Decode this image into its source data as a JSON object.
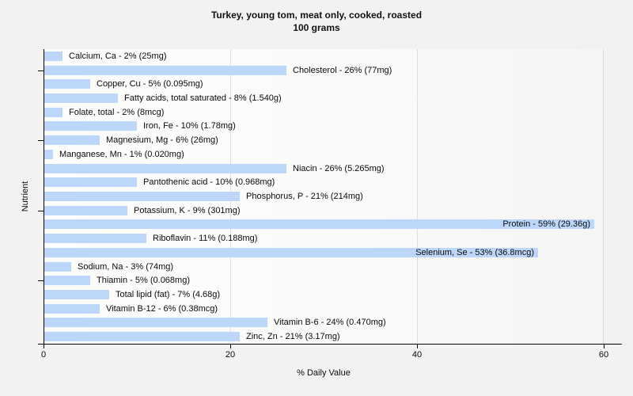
{
  "title": "Turkey, young tom, meat only, cooked, roasted",
  "subtitle": "100 grams",
  "chart_data": {
    "type": "bar",
    "orientation": "horizontal",
    "title": "Turkey, young tom, meat only, cooked, roasted",
    "subtitle": "100 grams",
    "xlabel": "% Daily Value",
    "ylabel": "Nutrient",
    "xlim": [
      0,
      60
    ],
    "xticks": [
      0,
      20,
      40,
      60
    ],
    "grid": "vertical-light",
    "legend": "none",
    "bar_color": "#BDD7FA",
    "y_tick_row_indexes": [
      1,
      6,
      11,
      16
    ],
    "items": [
      {
        "category": "Calcium, Ca",
        "value": 2,
        "label": "Calcium, Ca - 2% (25mg)",
        "label_inside": false
      },
      {
        "category": "Cholesterol",
        "value": 26,
        "label": "Cholesterol - 26% (77mg)",
        "label_inside": false
      },
      {
        "category": "Copper, Cu",
        "value": 5,
        "label": "Copper, Cu - 5% (0.095mg)",
        "label_inside": false
      },
      {
        "category": "Fatty acids, total saturated",
        "value": 8,
        "label": "Fatty acids, total saturated - 8% (1.540g)",
        "label_inside": false
      },
      {
        "category": "Folate, total",
        "value": 2,
        "label": "Folate, total - 2% (8mcg)",
        "label_inside": false
      },
      {
        "category": "Iron, Fe",
        "value": 10,
        "label": "Iron, Fe - 10% (1.78mg)",
        "label_inside": false
      },
      {
        "category": "Magnesium, Mg",
        "value": 6,
        "label": "Magnesium, Mg - 6% (26mg)",
        "label_inside": false
      },
      {
        "category": "Manganese, Mn",
        "value": 1,
        "label": "Manganese, Mn - 1% (0.020mg)",
        "label_inside": false
      },
      {
        "category": "Niacin",
        "value": 26,
        "label": "Niacin - 26% (5.265mg)",
        "label_inside": false
      },
      {
        "category": "Pantothenic acid",
        "value": 10,
        "label": "Pantothenic acid - 10% (0.968mg)",
        "label_inside": false
      },
      {
        "category": "Phosphorus, P",
        "value": 21,
        "label": "Phosphorus, P - 21% (214mg)",
        "label_inside": false
      },
      {
        "category": "Potassium, K",
        "value": 9,
        "label": "Potassium, K - 9% (301mg)",
        "label_inside": false
      },
      {
        "category": "Protein",
        "value": 59,
        "label": "Protein - 59% (29.36g)",
        "label_inside": true
      },
      {
        "category": "Riboflavin",
        "value": 11,
        "label": "Riboflavin - 11% (0.188mg)",
        "label_inside": false
      },
      {
        "category": "Selenium, Se",
        "value": 53,
        "label": "Selenium, Se - 53% (36.8mcg)",
        "label_inside": true
      },
      {
        "category": "Sodium, Na",
        "value": 3,
        "label": "Sodium, Na - 3% (74mg)",
        "label_inside": false
      },
      {
        "category": "Thiamin",
        "value": 5,
        "label": "Thiamin - 5% (0.068mg)",
        "label_inside": false
      },
      {
        "category": "Total lipid (fat)",
        "value": 7,
        "label": "Total lipid (fat) - 7% (4.68g)",
        "label_inside": false
      },
      {
        "category": "Vitamin B-12",
        "value": 6,
        "label": "Vitamin B-12 - 6% (0.38mcg)",
        "label_inside": false
      },
      {
        "category": "Vitamin B-6",
        "value": 24,
        "label": "Vitamin B-6 - 24% (0.470mg)",
        "label_inside": false
      },
      {
        "category": "Zinc, Zn",
        "value": 21,
        "label": "Zinc, Zn - 21% (3.17mg)",
        "label_inside": false
      }
    ]
  }
}
